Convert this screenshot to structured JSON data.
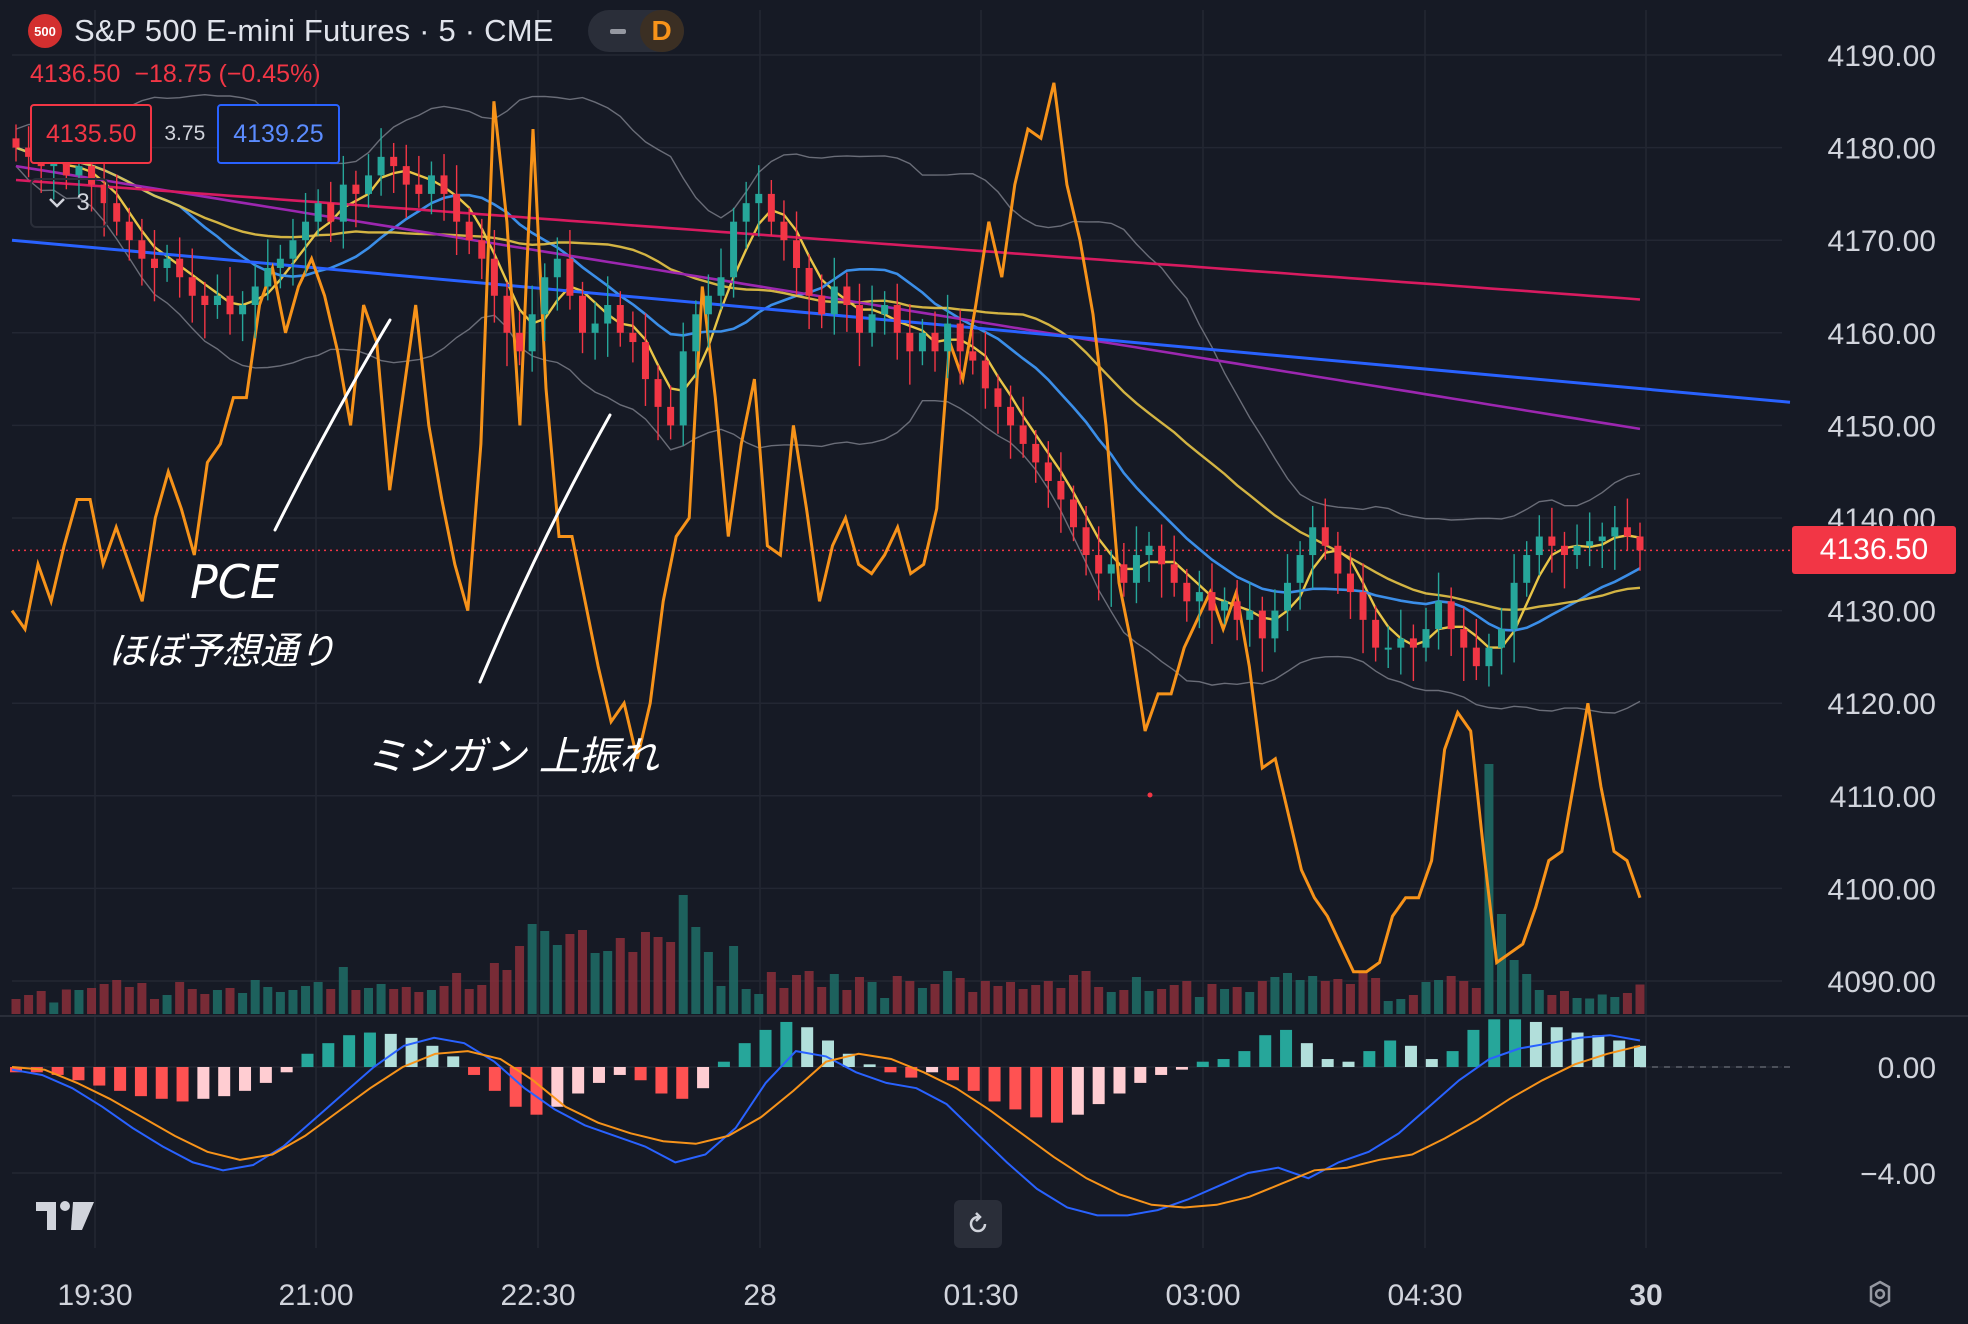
{
  "header": {
    "symbol_badge": "500",
    "title": "S&P 500 E-mini Futures · 5 · CME",
    "pill_letter": "D",
    "last_price": "4136.50",
    "change": "−18.75 (−0.45%)",
    "sell_price": "4135.50",
    "spread": "3.75",
    "buy_price": "4139.25",
    "indicators_collapsed_count": "3"
  },
  "last_price_badge": "4136.50",
  "annotations": {
    "note1_line1": "PCE",
    "note1_line2": "ほぼ予想通り",
    "note2": "ミシガン 上振れ"
  },
  "colors": {
    "background": "#161a25",
    "up": "#26a69a",
    "down": "#f23645",
    "orange": "#f7931a",
    "blue_trend": "#2962ff",
    "ma_yellow": "#e8c547",
    "ma_blue": "#3b8ee8",
    "ma_purple": "#9c27b0",
    "ma_crimson": "#d81b60"
  },
  "chart_data": [
    {
      "type": "candlestick",
      "title": "S&P 500 E-mini Futures · 5 · CME",
      "x_ticks": [
        "19:30",
        "21:00",
        "22:30",
        "28",
        "01:30",
        "03:00",
        "04:30",
        "30"
      ],
      "ylim": [
        4082,
        4194
      ],
      "y_ticks": [
        "4190.00",
        "4180.00",
        "4170.00",
        "4160.00",
        "4150.00",
        "4140.00",
        "4130.00",
        "4120.00",
        "4110.00",
        "4100.00",
        "4090.00"
      ],
      "grid": true,
      "closes": [
        4180,
        4179,
        4178,
        4178.5,
        4177,
        4178,
        4176,
        4174,
        4172,
        4170,
        4168,
        4167,
        4168,
        4166,
        4164,
        4163,
        4164,
        4162,
        4163,
        4165,
        4167,
        4168,
        4170,
        4172,
        4174,
        4172,
        4176,
        4175,
        4177,
        4179,
        4178,
        4176,
        4175,
        4177,
        4175,
        4172,
        4170,
        4168,
        4164,
        4160,
        4158,
        4162,
        4166,
        4168,
        4164,
        4160,
        4161,
        4163,
        4160,
        4159,
        4155,
        4152,
        4150,
        4158,
        4162,
        4164,
        4166,
        4172,
        4174,
        4175,
        4172,
        4170,
        4167,
        4164,
        4162,
        4165,
        4163,
        4160,
        4162,
        4163,
        4160,
        4158,
        4160,
        4158,
        4161,
        4158,
        4157,
        4154,
        4152,
        4150,
        4148,
        4146,
        4144,
        4142,
        4139,
        4136,
        4134,
        4135,
        4133,
        4136,
        4137,
        4135,
        4133,
        4131,
        4132,
        4130,
        4131,
        4129,
        4130,
        4127,
        4130,
        4133,
        4136,
        4139,
        4137,
        4134,
        4132,
        4129,
        4126,
        4126,
        4127,
        4126,
        4128,
        4131,
        4128,
        4126,
        4124,
        4126,
        4128,
        4133,
        4136,
        4138,
        4137,
        4136,
        4137,
        4137.5,
        4138,
        4139,
        4138,
        4136.5
      ]
    },
    {
      "type": "line",
      "series": [
        {
          "values": [
            4130,
            4128,
            4135,
            4131,
            4137,
            4142,
            4142,
            4135,
            4139,
            4135,
            4131,
            4140,
            4145,
            4141,
            4136,
            4146,
            4148,
            4153,
            4153,
            4163,
            4167,
            4160,
            4165,
            4168,
            4164,
            4158,
            4150,
            4163,
            4159,
            4143,
            4153,
            4163,
            4150,
            4142,
            4135,
            4130,
            4148,
            4185,
            4172,
            4150,
            4182,
            4154,
            4138,
            4138,
            4131,
            4124,
            4118,
            4120,
            4114,
            4120,
            4131,
            4138,
            4140,
            4165,
            4153,
            4138,
            4148,
            4155,
            4137,
            4136,
            4150,
            4141,
            4131,
            4137,
            4140,
            4135,
            4134,
            4136,
            4139,
            4134,
            4135,
            4141,
            4159,
            4155,
            4163,
            4172,
            4166,
            4176,
            4182,
            4181,
            4187,
            4176,
            4170,
            4162,
            4150,
            4133,
            4126,
            4117,
            4121,
            4121,
            4126,
            4129,
            4132,
            4128,
            4132,
            4124,
            4113,
            4114,
            4108,
            4102,
            4099,
            4097,
            4094,
            4091,
            4091,
            4092,
            4097,
            4099,
            4099,
            4103,
            4115,
            4119,
            4117,
            4104,
            4092,
            4093,
            4094,
            4098,
            4103,
            4104,
            4112,
            4120,
            4111,
            4104,
            4103,
            4099
          ]
        }
      ]
    },
    {
      "type": "bar",
      "ylim": [
        -5.8,
        1.8
      ],
      "y_ticks": [
        "0.00",
        "−4.00"
      ],
      "histogram": [
        -0.2,
        -0.2,
        -0.3,
        -0.5,
        -0.7,
        -0.9,
        -1.1,
        -1.2,
        -1.3,
        -1.2,
        -1.1,
        -0.9,
        -0.6,
        -0.2,
        0.5,
        0.9,
        1.2,
        1.3,
        1.25,
        1.1,
        0.8,
        0.4,
        -0.3,
        -0.9,
        -1.5,
        -1.8,
        -1.5,
        -1.0,
        -0.6,
        -0.3,
        -0.5,
        -1.0,
        -1.2,
        -0.8,
        0.2,
        0.9,
        1.4,
        1.7,
        1.5,
        1.0,
        0.5,
        0.1,
        -0.2,
        -0.4,
        -0.2,
        -0.5,
        -0.9,
        -1.3,
        -1.6,
        -1.9,
        -2.1,
        -1.8,
        -1.4,
        -1.0,
        -0.6,
        -0.3,
        -0.1,
        0.2,
        0.3,
        0.6,
        1.2,
        1.4,
        0.9,
        0.3,
        0.2,
        0.6,
        1.0,
        0.8,
        0.3,
        0.6,
        1.4,
        1.8,
        1.8,
        1.7,
        1.5,
        1.3,
        1.2,
        1.0,
        0.8
      ],
      "series": [
        {
          "values": [
            -0.1,
            -0.3,
            -0.8,
            -1.5,
            -2.3,
            -3.0,
            -3.6,
            -3.9,
            -3.7,
            -3.0,
            -2.0,
            -1.0,
            0.0,
            0.8,
            1.1,
            0.9,
            0.2,
            -0.8,
            -1.6,
            -2.2,
            -2.6,
            -3.0,
            -3.6,
            -3.3,
            -2.3,
            -0.6,
            0.6,
            0.4,
            -0.2,
            -0.6,
            -0.8,
            -1.4,
            -2.5,
            -3.6,
            -4.6,
            -5.3,
            -5.6,
            -5.6,
            -5.4,
            -5.0,
            -4.5,
            -4.0,
            -3.8,
            -4.2,
            -3.6,
            -3.2,
            -2.5,
            -1.5,
            -0.5,
            0.3,
            0.7,
            0.9,
            1.1,
            1.2,
            1.0
          ]
        },
        {
          "values": [
            0.0,
            -0.1,
            -0.6,
            -1.2,
            -1.9,
            -2.6,
            -3.2,
            -3.5,
            -3.3,
            -2.6,
            -1.7,
            -0.8,
            0.0,
            0.5,
            0.6,
            0.3,
            -0.5,
            -1.5,
            -2.1,
            -2.5,
            -2.8,
            -2.9,
            -2.6,
            -1.9,
            -0.9,
            0.2,
            0.5,
            0.3,
            -0.2,
            -0.8,
            -1.6,
            -2.5,
            -3.4,
            -4.2,
            -4.8,
            -5.2,
            -5.3,
            -5.2,
            -4.9,
            -4.4,
            -3.9,
            -3.8,
            -3.5,
            -3.3,
            -2.7,
            -2.0,
            -1.2,
            -0.5,
            0.1,
            0.5,
            0.8
          ]
        }
      ]
    }
  ]
}
